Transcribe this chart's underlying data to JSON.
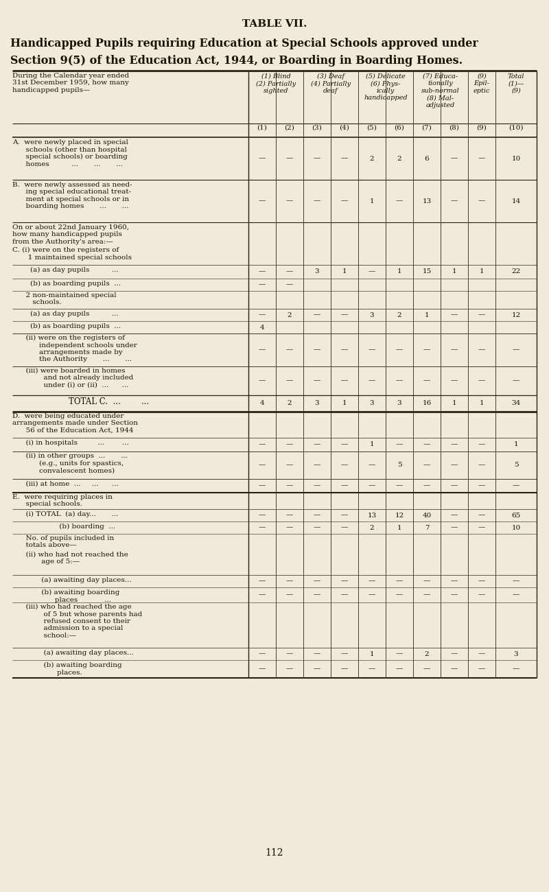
{
  "title": "TABLE VII.",
  "subtitle_line1": "Handicapped Pupils requiring Education at Special Schools approved under",
  "subtitle_line2": "Section 9(5) of the Education Act, 1944, or Boarding in Boarding Homes.",
  "bg_color": "#f0ead8",
  "text_color": "#1a1108",
  "footer": "112",
  "col_headers_italic": [
    "(1) Blind\n(2) Partially\nsighted",
    "(3) Deaf\n(4) Partially\ndeaf",
    "(5) Delicate\n(6) Phys-\nically\nhandicapped",
    "(7) Educa-\ntionally\nsub-normal\n(8) Mal-\nadjusted",
    "(9)\nEpil-\neptic",
    "Total\n(1)—\n(9)"
  ],
  "col_nums": [
    "(1)",
    "(2)",
    "(3)",
    "(4)",
    "(5)",
    "(6)",
    "(7)",
    "(8)",
    "(9)",
    "(10)"
  ],
  "table_data": {
    "A": [
      "—",
      "—",
      "—",
      "—",
      "2",
      "2",
      "6",
      "—",
      "—",
      "10"
    ],
    "B": [
      "—",
      "—",
      "—",
      "—",
      "1",
      "—",
      "13",
      "—",
      "—",
      "14"
    ],
    "C_ia": [
      "—",
      "—",
      "3",
      "1",
      "—",
      "1",
      "15",
      "1",
      "1",
      "22"
    ],
    "C_ib": [
      "—",
      "—",
      "",
      "",
      "",
      "",
      "",
      "",
      "",
      ""
    ],
    "C_2a": [
      "—",
      "2",
      "—",
      "—",
      "3",
      "2",
      "1",
      "—",
      "—",
      "12"
    ],
    "C_2b": [
      "4",
      "",
      "",
      "",
      "",
      "",
      "",
      "",
      "",
      ""
    ],
    "C_ii": [
      "—",
      "—",
      "—",
      "—",
      "—",
      "—",
      "—",
      "—",
      "—",
      "—"
    ],
    "C_iii": [
      "—",
      "—",
      "—",
      "—",
      "—",
      "—",
      "—",
      "—",
      "—",
      "—"
    ],
    "C_tot": [
      "4",
      "2",
      "3",
      "1",
      "3",
      "3",
      "16",
      "1",
      "1",
      "34"
    ],
    "D_i": [
      "—",
      "—",
      "—",
      "—",
      "1",
      "—",
      "—",
      "—",
      "—",
      "1"
    ],
    "D_ii": [
      "—",
      "—",
      "—",
      "—",
      "—",
      "5",
      "—",
      "—",
      "—",
      "5"
    ],
    "D_iii": [
      "—",
      "—",
      "—",
      "—",
      "—",
      "—",
      "—",
      "—",
      "—",
      "—"
    ],
    "E_ia": [
      "—",
      "—",
      "—",
      "—",
      "13",
      "12",
      "40",
      "—",
      "—",
      "65"
    ],
    "E_ib": [
      "—",
      "—",
      "—",
      "—",
      "2",
      "1",
      "7",
      "—",
      "—",
      "10"
    ],
    "E_iia": [
      "—",
      "—",
      "—",
      "—",
      "—",
      "—",
      "—",
      "—",
      "—",
      "—"
    ],
    "E_iib": [
      "—",
      "—",
      "—",
      "—",
      "—",
      "—",
      "—",
      "—",
      "—",
      "—"
    ],
    "E_iiia": [
      "—",
      "—",
      "—",
      "—",
      "1",
      "—",
      "2",
      "—",
      "—",
      "3"
    ],
    "E_iiib": [
      "—",
      "—",
      "—",
      "—",
      "—",
      "—",
      "—",
      "—",
      "—",
      "—"
    ]
  }
}
